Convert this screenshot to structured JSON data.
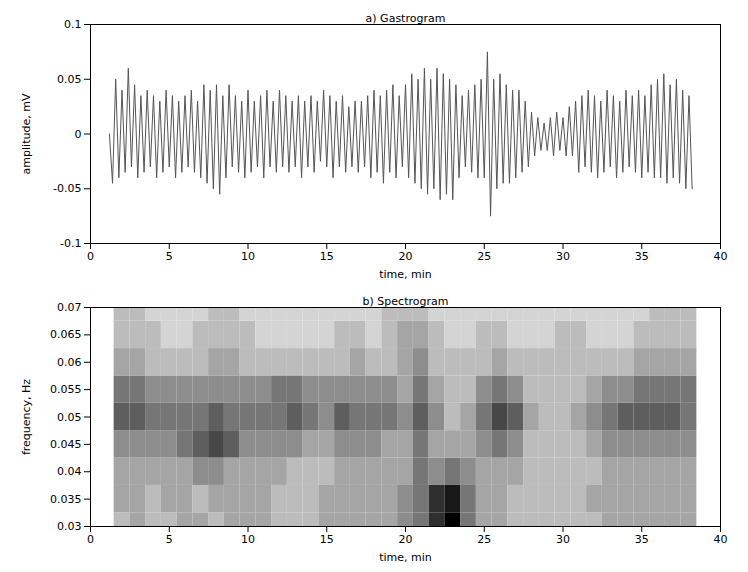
{
  "chart_data": [
    {
      "type": "line",
      "title": "a) Gastrogram",
      "x_label": "time, min",
      "y_label": "amplitude, mV",
      "color": "#555555",
      "grid": false,
      "xlim": [
        0,
        40
      ],
      "xticks": [
        0,
        5,
        10,
        15,
        20,
        25,
        30,
        35,
        40
      ],
      "ylim": [
        -0.1,
        0.1
      ],
      "yticks": [
        -0.1,
        -0.05,
        0,
        0.05,
        0.1
      ],
      "x": [
        1.2,
        1.4,
        1.6,
        1.8,
        2.0,
        2.2,
        2.4,
        2.6,
        2.8,
        3.0,
        3.2,
        3.4,
        3.6,
        3.8,
        4.0,
        4.2,
        4.4,
        4.6,
        4.8,
        5.0,
        5.2,
        5.4,
        5.6,
        5.8,
        6.0,
        6.2,
        6.4,
        6.6,
        6.8,
        7.0,
        7.2,
        7.4,
        7.6,
        7.8,
        8.0,
        8.2,
        8.4,
        8.6,
        8.8,
        9.0,
        9.2,
        9.4,
        9.6,
        9.8,
        10.0,
        10.2,
        10.4,
        10.6,
        10.8,
        11.0,
        11.2,
        11.4,
        11.6,
        11.8,
        12.0,
        12.2,
        12.4,
        12.6,
        12.8,
        13.0,
        13.2,
        13.4,
        13.6,
        13.8,
        14.0,
        14.2,
        14.4,
        14.6,
        14.8,
        15.0,
        15.2,
        15.4,
        15.6,
        15.8,
        16.0,
        16.2,
        16.4,
        16.6,
        16.8,
        17.0,
        17.2,
        17.4,
        17.6,
        17.8,
        18.0,
        18.2,
        18.4,
        18.6,
        18.8,
        19.0,
        19.2,
        19.4,
        19.6,
        19.8,
        20.0,
        20.2,
        20.4,
        20.6,
        20.8,
        21.0,
        21.2,
        21.4,
        21.6,
        21.8,
        22.0,
        22.2,
        22.4,
        22.6,
        22.8,
        23.0,
        23.2,
        23.4,
        23.6,
        23.8,
        24.0,
        24.2,
        24.4,
        24.6,
        24.8,
        25.0,
        25.2,
        25.4,
        25.6,
        25.8,
        26.0,
        26.2,
        26.4,
        26.6,
        26.8,
        27.0,
        27.2,
        27.4,
        27.6,
        27.8,
        28.0,
        28.2,
        28.4,
        28.6,
        28.8,
        29.0,
        29.2,
        29.4,
        29.6,
        29.8,
        30.0,
        30.2,
        30.4,
        30.6,
        30.8,
        31.0,
        31.2,
        31.4,
        31.6,
        31.8,
        32.0,
        32.2,
        32.4,
        32.6,
        32.8,
        33.0,
        33.2,
        33.4,
        33.6,
        33.8,
        34.0,
        34.2,
        34.4,
        34.6,
        34.8,
        35.0,
        35.2,
        35.4,
        35.6,
        35.8,
        36.0,
        36.2,
        36.4,
        36.6,
        36.8,
        37.0,
        37.2,
        37.4,
        37.6,
        37.8,
        38.0,
        38.2
      ],
      "values": [
        0.0,
        -0.045,
        0.05,
        -0.04,
        0.04,
        -0.035,
        0.06,
        -0.03,
        0.045,
        -0.04,
        0.035,
        -0.035,
        0.04,
        -0.03,
        0.035,
        -0.04,
        0.03,
        -0.035,
        0.04,
        -0.03,
        0.035,
        -0.04,
        0.03,
        -0.035,
        0.035,
        -0.03,
        0.04,
        -0.035,
        0.03,
        -0.04,
        0.045,
        -0.045,
        0.04,
        -0.05,
        0.045,
        -0.055,
        0.035,
        -0.04,
        0.045,
        -0.03,
        0.035,
        -0.035,
        0.03,
        -0.04,
        0.04,
        -0.035,
        0.03,
        -0.03,
        0.035,
        -0.04,
        0.04,
        -0.03,
        0.03,
        -0.035,
        0.04,
        -0.03,
        0.035,
        -0.035,
        0.03,
        -0.03,
        0.035,
        -0.04,
        0.03,
        -0.03,
        0.035,
        -0.035,
        0.03,
        -0.025,
        0.04,
        -0.03,
        0.035,
        -0.04,
        0.03,
        -0.03,
        0.035,
        -0.035,
        0.025,
        -0.03,
        0.03,
        -0.035,
        0.03,
        -0.03,
        0.035,
        -0.04,
        0.04,
        -0.035,
        0.035,
        -0.045,
        0.04,
        -0.035,
        0.045,
        -0.04,
        0.035,
        -0.03,
        0.045,
        -0.04,
        0.055,
        -0.045,
        0.05,
        -0.05,
        0.06,
        -0.055,
        0.05,
        -0.05,
        0.06,
        -0.06,
        0.055,
        -0.055,
        0.05,
        -0.06,
        0.045,
        -0.04,
        0.035,
        -0.03,
        0.04,
        -0.035,
        0.045,
        -0.04,
        0.05,
        -0.04,
        0.075,
        -0.075,
        0.05,
        -0.05,
        0.055,
        -0.045,
        0.045,
        -0.045,
        0.04,
        -0.04,
        0.04,
        -0.035,
        0.03,
        -0.03,
        0.02,
        -0.02,
        0.015,
        -0.015,
        0.01,
        -0.015,
        0.015,
        -0.02,
        0.02,
        -0.015,
        0.015,
        -0.02,
        0.025,
        -0.02,
        0.03,
        -0.035,
        0.035,
        -0.03,
        0.04,
        -0.035,
        0.035,
        -0.04,
        0.03,
        -0.035,
        0.04,
        -0.03,
        0.035,
        -0.04,
        0.03,
        -0.035,
        0.04,
        -0.03,
        0.035,
        -0.035,
        0.04,
        -0.04,
        0.035,
        -0.035,
        0.045,
        -0.04,
        0.05,
        -0.04,
        0.055,
        -0.045,
        0.045,
        -0.04,
        0.05,
        -0.045,
        0.04,
        -0.05,
        0.035,
        -0.05
      ]
    },
    {
      "type": "heatmap",
      "title": "b) Spectrogram",
      "x_label": "time, min",
      "y_label": "frequency, Hz",
      "grid": false,
      "xlim": [
        0,
        40
      ],
      "xticks": [
        0,
        5,
        10,
        15,
        20,
        25,
        30,
        35,
        40
      ],
      "ylim": [
        0.03,
        0.07
      ],
      "yticks": [
        0.03,
        0.035,
        0.04,
        0.045,
        0.05,
        0.055,
        0.06,
        0.065,
        0.07
      ],
      "x": [
        2,
        3,
        4,
        5,
        6,
        7,
        8,
        9,
        10,
        11,
        12,
        13,
        14,
        15,
        16,
        17,
        18,
        19,
        20,
        21,
        22,
        23,
        24,
        25,
        26,
        27,
        28,
        29,
        30,
        31,
        32,
        33,
        34,
        35,
        36,
        37,
        38
      ],
      "y": [
        0.03,
        0.035,
        0.04,
        0.045,
        0.05,
        0.055,
        0.06,
        0.065,
        0.07
      ],
      "zlim": [
        0,
        9
      ],
      "z": [
        [
          1,
          2,
          1,
          1,
          2,
          2,
          1,
          2,
          2,
          2,
          1,
          1,
          1,
          2,
          2,
          2,
          2,
          2,
          3,
          4,
          7,
          9,
          4,
          2,
          2,
          1,
          1,
          1,
          1,
          1,
          1,
          2,
          2,
          2,
          2,
          2,
          2
        ],
        [
          2,
          2,
          1,
          2,
          2,
          1,
          2,
          2,
          2,
          2,
          1,
          1,
          1,
          2,
          2,
          2,
          2,
          2,
          3,
          4,
          7,
          8,
          4,
          2,
          2,
          1,
          1,
          1,
          1,
          1,
          2,
          2,
          2,
          2,
          2,
          2,
          2
        ],
        [
          2,
          2,
          2,
          2,
          2,
          3,
          3,
          2,
          2,
          2,
          2,
          1,
          1,
          1,
          2,
          2,
          2,
          2,
          2,
          4,
          3,
          4,
          3,
          2,
          2,
          2,
          1,
          1,
          1,
          1,
          1,
          2,
          2,
          2,
          2,
          2,
          2
        ],
        [
          3,
          3,
          3,
          3,
          4,
          5,
          6,
          5,
          3,
          3,
          3,
          3,
          2,
          2,
          3,
          3,
          3,
          2,
          2,
          4,
          2,
          2,
          2,
          3,
          4,
          3,
          1,
          1,
          1,
          1,
          2,
          3,
          3,
          3,
          3,
          3,
          3
        ],
        [
          5,
          5,
          4,
          4,
          4,
          4,
          5,
          4,
          4,
          4,
          4,
          5,
          4,
          3,
          5,
          4,
          4,
          4,
          3,
          5,
          3,
          1,
          2,
          4,
          6,
          5,
          2,
          1,
          1,
          2,
          3,
          4,
          5,
          5,
          5,
          5,
          4
        ],
        [
          4,
          4,
          3,
          3,
          3,
          3,
          3,
          3,
          3,
          3,
          4,
          4,
          3,
          3,
          3,
          3,
          3,
          3,
          2,
          4,
          2,
          1,
          1,
          3,
          4,
          3,
          1,
          1,
          1,
          1,
          2,
          3,
          3,
          4,
          4,
          4,
          4
        ],
        [
          2,
          2,
          1,
          1,
          1,
          1,
          2,
          2,
          1,
          1,
          1,
          1,
          1,
          1,
          1,
          2,
          1,
          1,
          2,
          3,
          1,
          1,
          1,
          1,
          2,
          1,
          1,
          1,
          1,
          1,
          1,
          1,
          1,
          2,
          2,
          2,
          2
        ],
        [
          1,
          1,
          1,
          0,
          0,
          1,
          1,
          1,
          1,
          0,
          0,
          0,
          0,
          0,
          1,
          1,
          0,
          1,
          2,
          2,
          1,
          0,
          0,
          1,
          1,
          0,
          0,
          0,
          1,
          1,
          0,
          0,
          0,
          1,
          1,
          1,
          1
        ],
        [
          1,
          1,
          0,
          0,
          0,
          0,
          1,
          1,
          0,
          0,
          0,
          0,
          0,
          0,
          0,
          0,
          0,
          1,
          1,
          1,
          0,
          0,
          0,
          0,
          0,
          0,
          0,
          0,
          0,
          0,
          0,
          0,
          0,
          0,
          1,
          1,
          1
        ]
      ]
    }
  ]
}
